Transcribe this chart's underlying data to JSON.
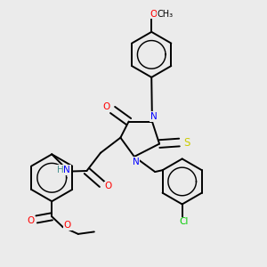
{
  "background_color": "#ebebeb",
  "atom_colors": {
    "N": "#0000ff",
    "O": "#ff0000",
    "S": "#cccc00",
    "Cl": "#00cc00",
    "C": "#000000",
    "H": "#4a9090"
  },
  "figsize": [
    3.0,
    3.0
  ],
  "dpi": 100,
  "bond_lw": 1.4,
  "font_size": 7.5
}
